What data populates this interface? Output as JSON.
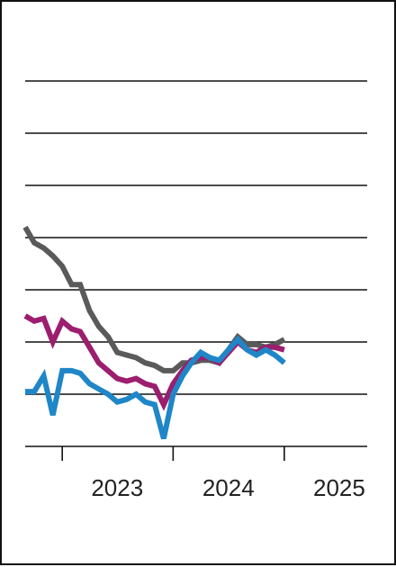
{
  "chart_data": {
    "type": "line",
    "title": "",
    "xlabel": "",
    "ylabel": "",
    "x_ticks": [
      "2023",
      "2024",
      "2025"
    ],
    "x_range": [
      "2022-09-01",
      "2025-10-01"
    ],
    "y_range": [
      0,
      7
    ],
    "gridlines": [
      0,
      1,
      2,
      3,
      4,
      5,
      6,
      7
    ],
    "grid": true,
    "legend": "none",
    "series": [
      {
        "color": "#5a5a5a",
        "x": [
          "2022-09",
          "2022-10",
          "2022-11",
          "2022-12",
          "2023-01",
          "2023-02",
          "2023-03",
          "2023-04",
          "2023-05",
          "2023-06",
          "2023-07",
          "2023-08",
          "2023-09",
          "2023-10",
          "2023-11",
          "2023-12",
          "2024-01",
          "2024-02",
          "2024-03",
          "2024-04",
          "2024-05",
          "2024-06",
          "2024-07",
          "2024-08",
          "2024-09",
          "2024-10",
          "2024-11",
          "2024-12",
          "2025-01"
        ],
        "values": [
          4.2,
          3.9,
          3.8,
          3.65,
          3.45,
          3.1,
          3.1,
          2.6,
          2.3,
          2.1,
          1.8,
          1.75,
          1.7,
          1.6,
          1.55,
          1.45,
          1.45,
          1.6,
          1.6,
          1.65,
          1.65,
          1.6,
          1.85,
          2.1,
          1.95,
          1.95,
          1.9,
          1.95,
          2.05
        ]
      },
      {
        "color": "#9c1e6e",
        "x": [
          "2022-09",
          "2022-10",
          "2022-11",
          "2022-12",
          "2023-01",
          "2023-02",
          "2023-03",
          "2023-04",
          "2023-05",
          "2023-06",
          "2023-07",
          "2023-08",
          "2023-09",
          "2023-10",
          "2023-11",
          "2023-12",
          "2024-01",
          "2024-02",
          "2024-03",
          "2024-04",
          "2024-05",
          "2024-06",
          "2024-07",
          "2024-08",
          "2024-09",
          "2024-10",
          "2024-11",
          "2024-12",
          "2025-01"
        ],
        "values": [
          2.5,
          2.4,
          2.45,
          2.0,
          2.4,
          2.25,
          2.2,
          1.9,
          1.6,
          1.45,
          1.3,
          1.25,
          1.3,
          1.2,
          1.15,
          0.8,
          1.2,
          1.45,
          1.65,
          1.7,
          1.7,
          1.6,
          1.8,
          2.0,
          1.85,
          1.8,
          1.9,
          1.9,
          1.85
        ]
      },
      {
        "color": "#1f86c7",
        "x": [
          "2022-09",
          "2022-10",
          "2022-11",
          "2022-12",
          "2023-01",
          "2023-02",
          "2023-03",
          "2023-04",
          "2023-05",
          "2023-06",
          "2023-07",
          "2023-08",
          "2023-09",
          "2023-10",
          "2023-11",
          "2023-12",
          "2024-01",
          "2024-02",
          "2024-03",
          "2024-04",
          "2024-05",
          "2024-06",
          "2024-07",
          "2024-08",
          "2024-09",
          "2024-10",
          "2024-11",
          "2024-12",
          "2025-01"
        ],
        "values": [
          1.05,
          1.05,
          1.35,
          0.6,
          1.45,
          1.45,
          1.4,
          1.2,
          1.1,
          1.0,
          0.85,
          0.9,
          1.0,
          0.85,
          0.8,
          0.15,
          1.0,
          1.35,
          1.6,
          1.8,
          1.7,
          1.65,
          1.85,
          2.05,
          1.85,
          1.75,
          1.85,
          1.75,
          1.6
        ]
      }
    ]
  }
}
